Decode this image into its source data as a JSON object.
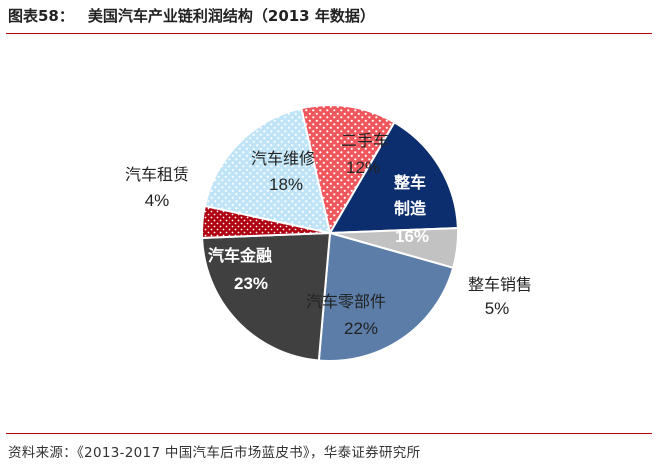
{
  "header": {
    "figure_no": "图表58：",
    "title": "美国汽车产业链利润结构（2013 年数据）"
  },
  "source": "资料来源：《2013-2017 中国汽车后市场蓝皮书》，华泰证券研究所",
  "chart_data": {
    "type": "pie",
    "title": "美国汽车产业链利润结构（2013 年数据）",
    "start_angle_deg": -13,
    "direction": "clockwise",
    "slices": [
      {
        "label": "二手车",
        "value": 12,
        "display": "12%",
        "color": "#f0575c",
        "pattern": "white-dots"
      },
      {
        "label": "整车制造",
        "value": 16,
        "display": "16%",
        "color": "#0d2e6e",
        "pattern": "solid"
      },
      {
        "label": "整车销售",
        "value": 5,
        "display": "5%",
        "color": "#c2c2c2",
        "pattern": "solid"
      },
      {
        "label": "汽车零部件",
        "value": 22,
        "display": "22%",
        "color": "#5b7da8",
        "pattern": "solid"
      },
      {
        "label": "汽车金融",
        "value": 23,
        "display": "23%",
        "color": "#404040",
        "pattern": "solid"
      },
      {
        "label": "汽车租赁",
        "value": 4,
        "display": "4%",
        "color": "#b00010",
        "pattern": "white-dots"
      },
      {
        "label": "汽车维修",
        "value": 18,
        "display": "18%",
        "color": "#bfe4f7",
        "pattern": "white-dots"
      }
    ]
  }
}
